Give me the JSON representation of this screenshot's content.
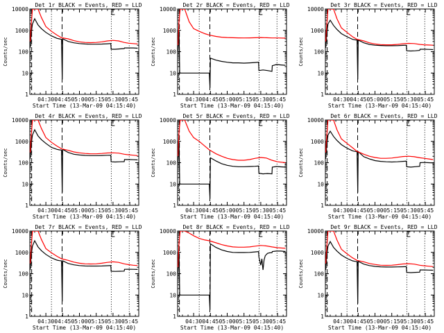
{
  "chart_data": {
    "type": "line",
    "layout": "3x3 grid of panels",
    "x_tick_labels": [
      "04:30",
      "04:45",
      "05:00",
      "05:15",
      "05:30",
      "05:45"
    ],
    "x_tick_minutes": [
      30,
      45,
      60,
      75,
      90,
      105
    ],
    "xlim_minutes": [
      15.67,
      113
    ],
    "y_scale": "log",
    "ylim": [
      1,
      10000
    ],
    "y_tick_labels": [
      "1",
      "10",
      "100",
      "1000",
      "10000"
    ],
    "ylabel": "Counts/sec",
    "xlabel": "Start Time (13-Mar-09 04:15:40)",
    "series_colors": {
      "events": "#000000",
      "lld": "#ff0000"
    },
    "vertical_markers": [
      {
        "minute": 17.3,
        "style": "dashed"
      },
      {
        "minute": 35.0,
        "style": "dotted"
      },
      {
        "minute": 44.5,
        "style": "dashed"
      },
      {
        "minute": 88.5,
        "style": "dotted"
      },
      {
        "minute": 104.5,
        "style": "dotted"
      }
    ],
    "panels": [
      {
        "title": "Det 1r BLACK = Events, RED = LLD",
        "events": {
          "x": [
            16,
            17,
            18,
            20,
            23,
            26,
            30,
            35,
            40,
            42,
            44,
            44.6,
            45,
            50,
            55,
            60,
            65,
            70,
            75,
            80,
            85,
            88,
            88.3,
            92,
            96,
            100,
            100.3,
            104,
            108,
            112
          ],
          "y": [
            150,
            800,
            2000,
            3500,
            1800,
            1200,
            800,
            550,
            420,
            400,
            380,
            5,
            400,
            300,
            260,
            240,
            230,
            225,
            225,
            228,
            235,
            240,
            130,
            130,
            135,
            140,
            150,
            150,
            150,
            145
          ]
        },
        "lld": {
          "x": [
            16,
            17,
            18,
            20,
            23,
            26,
            30,
            35,
            40,
            44,
            50,
            55,
            60,
            65,
            70,
            75,
            80,
            85,
            90,
            95,
            100,
            104,
            108,
            112
          ],
          "y": [
            300,
            2000,
            10000,
            10000,
            10000,
            4000,
            1500,
            900,
            600,
            450,
            400,
            330,
            290,
            270,
            265,
            270,
            290,
            320,
            340,
            320,
            270,
            250,
            240,
            230
          ]
        }
      },
      {
        "title": "Det 2r BLACK = Events, RED = LLD",
        "events": {
          "x": [
            16,
            17,
            17.5,
            18,
            44,
            44.6,
            45,
            50,
            55,
            60,
            65,
            70,
            75,
            80,
            85,
            88,
            88.3,
            92,
            96,
            100,
            100.3,
            104,
            108,
            112
          ],
          "y": [
            100,
            1000,
            10,
            10,
            10,
            2,
            50,
            40,
            35,
            32,
            30,
            30,
            29,
            30,
            31,
            32,
            13,
            14,
            13,
            12,
            22,
            25,
            24,
            23
          ]
        },
        "lld": {
          "x": [
            16,
            17,
            18,
            22,
            26,
            30,
            35,
            40,
            44,
            50,
            55,
            60,
            65,
            70,
            75,
            80,
            85,
            90,
            95,
            100,
            105,
            112
          ],
          "y": [
            200,
            3000,
            10000,
            10000,
            2500,
            1200,
            900,
            700,
            600,
            520,
            480,
            460,
            450,
            445,
            440,
            445,
            450,
            460,
            450,
            440,
            440,
            430
          ]
        }
      },
      {
        "title": "Det 3r BLACK = Events, RED = LLD",
        "events": {
          "x": [
            16,
            17,
            18,
            20,
            23,
            26,
            30,
            35,
            40,
            42,
            44,
            44.6,
            45,
            50,
            55,
            60,
            65,
            70,
            75,
            80,
            85,
            88,
            88.3,
            92,
            96,
            100,
            100.3,
            104,
            108,
            112
          ],
          "y": [
            150,
            700,
            2000,
            3000,
            1700,
            1100,
            700,
            500,
            380,
            360,
            350,
            5,
            350,
            260,
            220,
            200,
            195,
            190,
            190,
            192,
            198,
            200,
            110,
            108,
            110,
            115,
            130,
            130,
            128,
            125
          ]
        },
        "lld": {
          "x": [
            16,
            17,
            18,
            20,
            23,
            26,
            30,
            35,
            40,
            44,
            50,
            55,
            60,
            65,
            70,
            75,
            80,
            85,
            90,
            95,
            100,
            104,
            108,
            112
          ],
          "y": [
            300,
            2000,
            10000,
            10000,
            10000,
            3500,
            1300,
            800,
            500,
            380,
            320,
            260,
            230,
            215,
            210,
            210,
            220,
            235,
            245,
            240,
            220,
            210,
            205,
            200
          ]
        }
      },
      {
        "title": "Det 4r BLACK = Events, RED = LLD",
        "events": {
          "x": [
            16,
            17,
            18,
            20,
            23,
            26,
            30,
            35,
            40,
            42,
            44,
            44.6,
            45,
            50,
            55,
            60,
            65,
            70,
            75,
            80,
            85,
            88,
            88.3,
            92,
            96,
            100,
            100.3,
            104,
            108,
            112
          ],
          "y": [
            150,
            800,
            2000,
            3500,
            1800,
            1200,
            800,
            520,
            420,
            400,
            390,
            4,
            420,
            300,
            250,
            230,
            220,
            215,
            215,
            218,
            222,
            225,
            110,
            108,
            110,
            112,
            140,
            140,
            138,
            135
          ]
        },
        "lld": {
          "x": [
            16,
            17,
            18,
            20,
            23,
            26,
            30,
            35,
            40,
            44,
            50,
            55,
            60,
            65,
            70,
            75,
            80,
            85,
            90,
            95,
            100,
            104,
            108,
            112
          ],
          "y": [
            300,
            2000,
            10000,
            10000,
            10000,
            4000,
            1500,
            900,
            600,
            450,
            380,
            320,
            290,
            270,
            260,
            260,
            270,
            285,
            290,
            280,
            250,
            235,
            225,
            215
          ]
        }
      },
      {
        "title": "Det 5r BLACK = Events, RED = LLD",
        "events": {
          "x": [
            16,
            17,
            17.5,
            18,
            44,
            44.6,
            45,
            50,
            55,
            60,
            65,
            70,
            75,
            80,
            85,
            88,
            88.3,
            92,
            96,
            100,
            100.3,
            104,
            108,
            112
          ],
          "y": [
            100,
            1000,
            10,
            10,
            10,
            2,
            170,
            120,
            90,
            75,
            68,
            65,
            65,
            66,
            68,
            70,
            32,
            30,
            31,
            30,
            62,
            66,
            64,
            62
          ]
        },
        "lld": {
          "x": [
            16,
            17,
            18,
            22,
            26,
            30,
            35,
            40,
            44,
            50,
            55,
            60,
            65,
            70,
            75,
            80,
            85,
            90,
            95,
            100,
            105,
            112
          ],
          "y": [
            200,
            3000,
            10000,
            10000,
            3000,
            1500,
            1000,
            600,
            400,
            260,
            200,
            160,
            140,
            130,
            130,
            140,
            160,
            175,
            165,
            130,
            110,
            100
          ]
        }
      },
      {
        "title": "Det 6r BLACK = Events, RED = LLD",
        "events": {
          "x": [
            16,
            17,
            18,
            20,
            23,
            26,
            30,
            35,
            40,
            42,
            44,
            44.6,
            45,
            50,
            55,
            60,
            65,
            70,
            75,
            80,
            85,
            88,
            88.3,
            92,
            96,
            100,
            100.3,
            104,
            108,
            112
          ],
          "y": [
            150,
            700,
            2000,
            3000,
            1700,
            1100,
            700,
            480,
            360,
            340,
            330,
            4,
            330,
            190,
            150,
            125,
            115,
            110,
            108,
            110,
            115,
            118,
            65,
            62,
            65,
            68,
            100,
            102,
            100,
            98
          ]
        },
        "lld": {
          "x": [
            16,
            17,
            18,
            20,
            23,
            26,
            30,
            35,
            40,
            44,
            50,
            55,
            60,
            65,
            70,
            75,
            80,
            85,
            90,
            95,
            100,
            104,
            108,
            112
          ],
          "y": [
            300,
            2000,
            10000,
            10000,
            10000,
            3500,
            1300,
            800,
            500,
            340,
            250,
            200,
            175,
            160,
            160,
            165,
            180,
            195,
            200,
            190,
            170,
            160,
            150,
            140
          ]
        }
      },
      {
        "title": "Det 7r BLACK = Events, RED = LLD",
        "events": {
          "x": [
            16,
            17,
            18,
            20,
            23,
            26,
            30,
            35,
            40,
            42,
            44,
            44.6,
            45,
            50,
            55,
            60,
            65,
            70,
            75,
            80,
            85,
            88,
            88.3,
            92,
            96,
            100,
            100.3,
            104,
            108,
            112
          ],
          "y": [
            150,
            800,
            2000,
            3500,
            1800,
            1200,
            800,
            550,
            430,
            410,
            400,
            5,
            400,
            300,
            260,
            240,
            230,
            228,
            228,
            230,
            236,
            240,
            130,
            128,
            130,
            132,
            160,
            162,
            160,
            158
          ]
        },
        "lld": {
          "x": [
            16,
            17,
            18,
            20,
            23,
            26,
            30,
            35,
            40,
            44,
            50,
            55,
            60,
            65,
            70,
            75,
            80,
            85,
            90,
            95,
            100,
            104,
            108,
            112
          ],
          "y": [
            300,
            2000,
            10000,
            10000,
            10000,
            4000,
            1500,
            950,
            650,
            500,
            420,
            350,
            310,
            290,
            285,
            290,
            310,
            340,
            360,
            340,
            290,
            265,
            250,
            240
          ]
        }
      },
      {
        "title": "Det 8r BLACK = Events, RED = LLD",
        "events": {
          "x": [
            16,
            17,
            17.5,
            18,
            44,
            44.6,
            45,
            50,
            55,
            60,
            65,
            70,
            75,
            80,
            85,
            88,
            88.3,
            90,
            91,
            92,
            93,
            94,
            96,
            98,
            100,
            100.3,
            104,
            108,
            112
          ],
          "y": [
            100,
            1000,
            10,
            10,
            10,
            2,
            2500,
            1700,
            1300,
            1100,
            1000,
            980,
            980,
            1000,
            1050,
            1080,
            600,
            250,
            500,
            150,
            450,
            700,
            900,
            950,
            960,
            1100,
            1150,
            1150,
            1100
          ]
        },
        "lld": {
          "x": [
            16,
            17,
            18,
            22,
            26,
            30,
            35,
            40,
            44,
            50,
            55,
            60,
            65,
            70,
            75,
            80,
            85,
            90,
            95,
            100,
            105,
            112
          ],
          "y": [
            200,
            3000,
            10000,
            10000,
            8000,
            6000,
            4500,
            3800,
            3500,
            2800,
            2300,
            2000,
            1800,
            1750,
            1750,
            1800,
            1950,
            2100,
            2000,
            1800,
            1650,
            1550
          ]
        }
      },
      {
        "title": "Det 9r BLACK = Events, RED = LLD",
        "events": {
          "x": [
            16,
            17,
            18,
            20,
            23,
            26,
            30,
            35,
            40,
            42,
            44,
            44.6,
            45,
            50,
            55,
            60,
            65,
            70,
            75,
            80,
            85,
            88,
            88.3,
            92,
            96,
            100,
            100.3,
            104,
            108,
            112
          ],
          "y": [
            150,
            750,
            2000,
            3200,
            1700,
            1150,
            750,
            520,
            400,
            380,
            370,
            4,
            380,
            280,
            240,
            220,
            210,
            205,
            205,
            208,
            212,
            215,
            115,
            112,
            115,
            118,
            150,
            150,
            148,
            145
          ]
        },
        "lld": {
          "x": [
            16,
            17,
            18,
            20,
            23,
            26,
            30,
            35,
            40,
            44,
            50,
            55,
            60,
            65,
            70,
            75,
            80,
            85,
            90,
            95,
            100,
            104,
            108,
            112
          ],
          "y": [
            300,
            2000,
            10000,
            10000,
            10000,
            3800,
            1400,
            850,
            550,
            420,
            360,
            300,
            270,
            250,
            245,
            250,
            265,
            285,
            295,
            280,
            250,
            235,
            225,
            215
          ]
        }
      }
    ]
  }
}
